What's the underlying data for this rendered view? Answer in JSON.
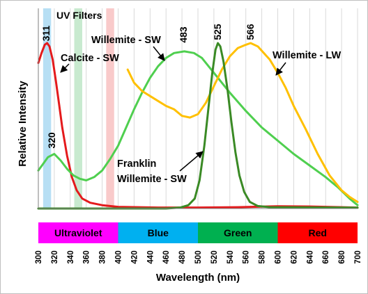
{
  "chart_data": {
    "type": "line",
    "xlabel": "Wavelength (nm)",
    "ylabel": "Relative Intensity",
    "xlim": [
      300,
      700
    ],
    "x_ticks": [
      300,
      320,
      340,
      360,
      380,
      400,
      420,
      440,
      460,
      480,
      500,
      520,
      540,
      560,
      580,
      600,
      620,
      640,
      660,
      680,
      700
    ],
    "grid": "vertical",
    "annotations": {
      "uv_filters": "UV Filters",
      "calcite": "Calcite - SW",
      "willemite_sw": "Willemite - SW",
      "willemite_lw": "Willemite - LW",
      "franklin": [
        "Franklin",
        "Willemite - SW"
      ],
      "peaks": {
        "p311": "311",
        "p320": "320",
        "p483": "483",
        "p525": "525",
        "p566": "566"
      }
    },
    "uv_filters": [
      {
        "center": 311,
        "width": 10,
        "color": "#9fd4f0"
      },
      {
        "center": 350,
        "width": 10,
        "color": "#b6e3bf"
      },
      {
        "center": 390,
        "width": 10,
        "color": "#f7b8b8"
      }
    ],
    "bands": [
      {
        "label": "Ultraviolet",
        "from": 300,
        "to": 400,
        "color": "#ff00ff"
      },
      {
        "label": "Blue",
        "from": 400,
        "to": 500,
        "color": "#00b0f0"
      },
      {
        "label": "Green",
        "from": 500,
        "to": 600,
        "color": "#00b050"
      },
      {
        "label": "Red",
        "from": 600,
        "to": 700,
        "color": "#ff0000"
      }
    ],
    "series": [
      {
        "name": "Calcite - SW",
        "color": "#e41a1c",
        "points": [
          [
            300,
            0.88
          ],
          [
            304,
            0.94
          ],
          [
            308,
            0.99
          ],
          [
            311,
            1.0
          ],
          [
            314,
            0.98
          ],
          [
            318,
            0.9
          ],
          [
            322,
            0.77
          ],
          [
            326,
            0.63
          ],
          [
            330,
            0.49
          ],
          [
            336,
            0.32
          ],
          [
            342,
            0.19
          ],
          [
            348,
            0.11
          ],
          [
            355,
            0.06
          ],
          [
            365,
            0.035
          ],
          [
            380,
            0.02
          ],
          [
            400,
            0.01
          ],
          [
            450,
            0.006
          ],
          [
            500,
            0.006
          ],
          [
            550,
            0.008
          ],
          [
            600,
            0.014
          ],
          [
            640,
            0.012
          ],
          [
            680,
            0.008
          ],
          [
            700,
            0.005
          ]
        ]
      },
      {
        "name": "Willemite - SW",
        "color": "#4fcf4f",
        "points": [
          [
            300,
            0.23
          ],
          [
            306,
            0.27
          ],
          [
            312,
            0.31
          ],
          [
            320,
            0.33
          ],
          [
            328,
            0.29
          ],
          [
            336,
            0.24
          ],
          [
            344,
            0.2
          ],
          [
            352,
            0.18
          ],
          [
            360,
            0.17
          ],
          [
            370,
            0.19
          ],
          [
            380,
            0.23
          ],
          [
            390,
            0.3
          ],
          [
            400,
            0.38
          ],
          [
            410,
            0.49
          ],
          [
            420,
            0.6
          ],
          [
            430,
            0.7
          ],
          [
            440,
            0.79
          ],
          [
            450,
            0.86
          ],
          [
            460,
            0.91
          ],
          [
            470,
            0.94
          ],
          [
            483,
            0.95
          ],
          [
            495,
            0.94
          ],
          [
            505,
            0.91
          ],
          [
            520,
            0.82
          ],
          [
            540,
            0.7
          ],
          [
            560,
            0.59
          ],
          [
            580,
            0.49
          ],
          [
            600,
            0.41
          ],
          [
            620,
            0.33
          ],
          [
            640,
            0.26
          ],
          [
            660,
            0.19
          ],
          [
            675,
            0.13
          ],
          [
            690,
            0.06
          ],
          [
            700,
            0.02
          ]
        ]
      },
      {
        "name": "Willemite - LW",
        "color": "#ffc000",
        "points": [
          [
            412,
            0.84
          ],
          [
            420,
            0.76
          ],
          [
            430,
            0.71
          ],
          [
            440,
            0.68
          ],
          [
            450,
            0.65
          ],
          [
            460,
            0.62
          ],
          [
            470,
            0.6
          ],
          [
            480,
            0.56
          ],
          [
            490,
            0.55
          ],
          [
            500,
            0.57
          ],
          [
            510,
            0.64
          ],
          [
            520,
            0.74
          ],
          [
            530,
            0.84
          ],
          [
            540,
            0.92
          ],
          [
            550,
            0.97
          ],
          [
            560,
            0.99
          ],
          [
            566,
            1.0
          ],
          [
            575,
            0.98
          ],
          [
            590,
            0.9
          ],
          [
            600,
            0.82
          ],
          [
            610,
            0.73
          ],
          [
            620,
            0.62
          ],
          [
            635,
            0.48
          ],
          [
            650,
            0.33
          ],
          [
            665,
            0.2
          ],
          [
            680,
            0.11
          ],
          [
            690,
            0.07
          ],
          [
            700,
            0.04
          ]
        ]
      },
      {
        "name": "Franklin Willemite - SW",
        "color": "#3a8a25",
        "points": [
          [
            300,
            0.0
          ],
          [
            460,
            0.0
          ],
          [
            478,
            0.006
          ],
          [
            488,
            0.02
          ],
          [
            496,
            0.06
          ],
          [
            502,
            0.17
          ],
          [
            508,
            0.38
          ],
          [
            513,
            0.6
          ],
          [
            518,
            0.82
          ],
          [
            522,
            0.96
          ],
          [
            525,
            1.0
          ],
          [
            528,
            0.98
          ],
          [
            532,
            0.89
          ],
          [
            537,
            0.72
          ],
          [
            542,
            0.52
          ],
          [
            547,
            0.34
          ],
          [
            552,
            0.2
          ],
          [
            558,
            0.1
          ],
          [
            565,
            0.04
          ],
          [
            575,
            0.015
          ],
          [
            590,
            0.008
          ],
          [
            700,
            0.005
          ]
        ]
      }
    ]
  }
}
